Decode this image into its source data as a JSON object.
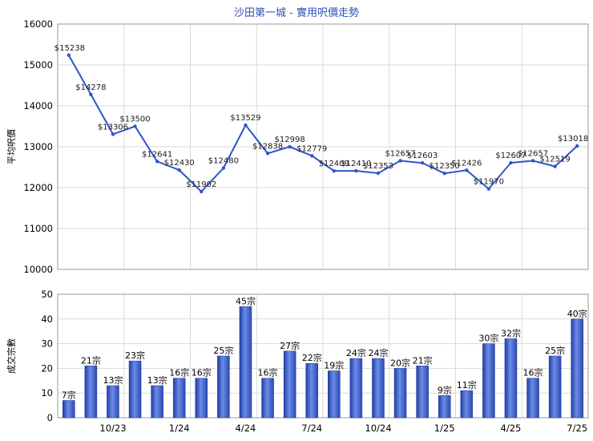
{
  "chart_data": [
    {
      "type": "line",
      "title": "沙田第一城 - 實用呎價走勢",
      "ylabel": "平均呎價",
      "ylim": [
        10000,
        16000
      ],
      "yticks": [
        10000,
        11000,
        12000,
        13000,
        14000,
        15000,
        16000
      ],
      "grid": true,
      "color": "#2e56c8",
      "values": [
        15238,
        14278,
        13306,
        13500,
        12641,
        12430,
        11902,
        12480,
        13529,
        12838,
        12998,
        12779,
        12409,
        12410,
        12353,
        12657,
        12603,
        12350,
        12426,
        11970,
        12607,
        12657,
        12519,
        13018
      ],
      "labels": [
        "$15238",
        "$14278",
        "$13306",
        "$13500",
        "$12641",
        "$12430",
        "$11902",
        "$12480",
        "$13529",
        "$12838",
        "$12998",
        "$12779",
        "$12409",
        "$12410",
        "$12353",
        "$12657",
        "$12603",
        "$12350",
        "$12426",
        "$11970",
        "$12607",
        "$12657",
        "$12519",
        "$13018"
      ]
    },
    {
      "type": "bar",
      "ylabel": "成交宗數",
      "ylim": [
        0,
        50
      ],
      "yticks": [
        0,
        10,
        20,
        30,
        40,
        50
      ],
      "grid": true,
      "color": "#3558c9",
      "values": [
        7,
        21,
        13,
        23,
        13,
        16,
        16,
        25,
        45,
        16,
        27,
        22,
        19,
        24,
        24,
        20,
        21,
        9,
        11,
        30,
        32,
        16,
        25,
        40
      ],
      "labels": [
        "7宗",
        "21宗",
        "13宗",
        "23宗",
        "13宗",
        "16宗",
        "16宗",
        "25宗",
        "45宗",
        "16宗",
        "27宗",
        "22宗",
        "19宗",
        "24宗",
        "24宗",
        "20宗",
        "21宗",
        "9宗",
        "11宗",
        "30宗",
        "32宗",
        "16宗",
        "25宗",
        "40宗"
      ],
      "xtick_labels": [
        "10/23",
        "1/24",
        "4/24",
        "7/24",
        "10/24",
        "1/25",
        "4/25",
        "7/25"
      ],
      "xtick_index": [
        2,
        5,
        8,
        11,
        14,
        17,
        20,
        23
      ]
    }
  ]
}
